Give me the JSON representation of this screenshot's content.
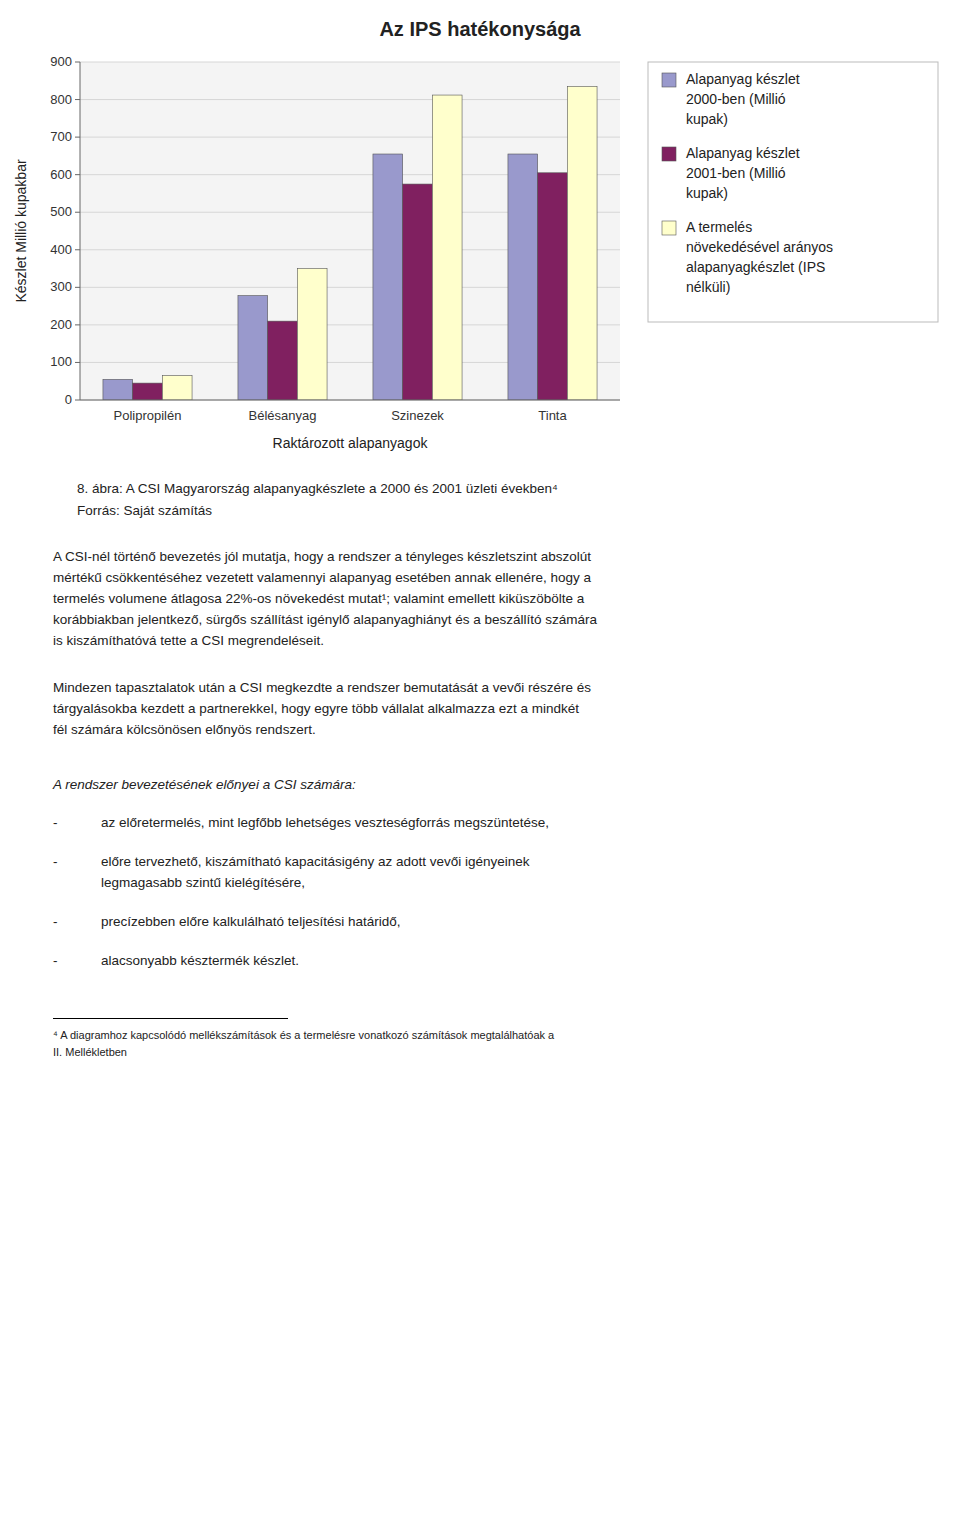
{
  "chart_data": {
    "type": "bar",
    "title": "Az IPS hatékonysága",
    "xlabel": "Raktározott alapanyagok",
    "ylabel": "Készlet Millió kupakbar",
    "categories": [
      "Polipropilén",
      "Bélésanyag",
      "Szinezek",
      "Tinta"
    ],
    "series": [
      {
        "name": "Alapanyag készlet\n2000-ben (Millió\nkupak)",
        "color": "#9999cc",
        "values": [
          55,
          278,
          655,
          655
        ]
      },
      {
        "name": "Alapanyag készlet\n2001-ben (Millió\nkupak)",
        "color": "#802060",
        "values": [
          45,
          210,
          575,
          605
        ]
      },
      {
        "name": "A termelés\nnövekedésével arányos\nalapanyagkészlet (IPS\nnélküli)",
        "color": "#ffffcc",
        "values": [
          65,
          350,
          812,
          835
        ]
      }
    ],
    "ylim": [
      0,
      900
    ],
    "yticks": [
      0,
      100,
      200,
      300,
      400,
      500,
      600,
      700,
      800,
      900
    ],
    "grid": true,
    "legend": "right"
  },
  "page_text": {
    "caption": [
      "8. ábra: A CSI Magyarország alapanyagkészlete a 2000 és 2001 üzleti években⁴",
      "Forrás: Saját számítás"
    ],
    "paragraphs": [
      "A CSI-nél történő bevezetés jól mutatja, hogy a rendszer a tényleges készletszint abszolút\nmértékű csökkentéséhez vezetett valamennyi alapanyag esetében annak ellenére, hogy a\ntermelés volumene átlagosa 22%-os növekedést mutat¹; valamint emellett kiküszöbölte a\nkorábbiakban jelentkező, sürgős szállítást igénylő alapanyaghiányt és a beszállító számára\nis kiszámíthatóvá tette a CSI megrendeléseit.",
      "Mindezen tapasztalatok után a CSI megkezdte a rendszer bemutatását a vevői részére és\ntárgyalásokba kezdett a partnerekkel, hogy egyre több vállalat alkalmazza ezt a mindkét\nfél számára kölcsönösen előnyös rendszert."
    ],
    "heading": "A rendszer bevezetésének előnyei a CSI számára:",
    "bullet_marker": "-",
    "bullets": [
      "az előretermelés, mint legfőbb lehetséges veszteségforrás megszüntetése,",
      "előre tervezhető, kiszámítható kapacitásigény az adott vevői igényeinek\nlegmagasabb szintű kielégítésére,",
      "precízebben előre kalkulálható teljesítési határidő,",
      "alacsonyabb késztermék készlet."
    ],
    "footnotes": [
      "⁴ A diagramhoz kapcsolódó mellékszámítások és a termelésre vonatkozó számítások megtalálhatóak a",
      "II. Mellékletben"
    ]
  }
}
